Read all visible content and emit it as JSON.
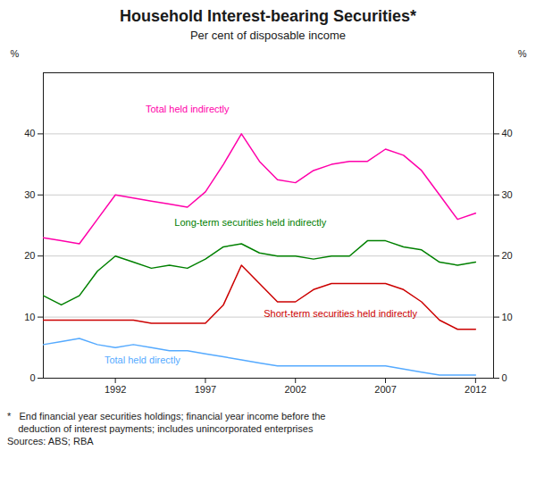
{
  "chart_data": {
    "type": "line",
    "title": "Household Interest-bearing Securities*",
    "subtitle": "Per cent of disposable income",
    "ylabel": "%",
    "y2label": "%",
    "footnotes": [
      "*   End financial year securities holdings; financial year income before the",
      "    deduction of interest payments; includes unincorporated enterprises",
      "Sources: ABS; RBA"
    ],
    "x": [
      1988,
      1989,
      1990,
      1991,
      1992,
      1993,
      1994,
      1995,
      1996,
      1997,
      1998,
      1999,
      2000,
      2001,
      2002,
      2003,
      2004,
      2005,
      2006,
      2007,
      2008,
      2009,
      2010,
      2011,
      2012
    ],
    "xlim": [
      1988,
      2013
    ],
    "xticks": [
      1992,
      1997,
      2002,
      2007,
      2012
    ],
    "ylim": [
      0,
      50
    ],
    "yticks": [
      0,
      10,
      20,
      30,
      40
    ],
    "y2lim": [
      0,
      50
    ],
    "y2ticks": [
      0,
      10,
      20,
      30,
      40
    ],
    "grid": true,
    "series": [
      {
        "name": "Total held indirectly",
        "color": "#FF00AA",
        "label_x": 1996.0,
        "label_y": 44.0,
        "values": [
          23.0,
          22.5,
          22.0,
          26.0,
          30.0,
          29.5,
          29.0,
          28.5,
          28.0,
          30.5,
          35.0,
          40.0,
          35.5,
          32.5,
          32.0,
          34.0,
          35.0,
          35.5,
          35.5,
          37.5,
          36.5,
          34.0,
          30.0,
          26.0,
          27.0
        ]
      },
      {
        "name": "Long-term securities held indirectly",
        "color": "#008000",
        "label_x": 1999.5,
        "label_y": 25.5,
        "values": [
          13.5,
          12.0,
          13.5,
          17.5,
          20.0,
          19.0,
          18.0,
          18.5,
          18.0,
          19.5,
          21.5,
          22.0,
          20.5,
          20.0,
          20.0,
          19.5,
          20.0,
          20.0,
          22.5,
          22.5,
          21.5,
          21.0,
          19.0,
          18.5,
          19.0
        ]
      },
      {
        "name": "Short-term securities held indirectly",
        "color": "#CC0000",
        "label_x": 2004.5,
        "label_y": 10.5,
        "values": [
          9.5,
          9.5,
          9.5,
          9.5,
          9.5,
          9.5,
          9.0,
          9.0,
          9.0,
          9.0,
          12.0,
          18.5,
          15.5,
          12.5,
          12.5,
          14.5,
          15.5,
          15.5,
          15.5,
          15.5,
          14.5,
          12.5,
          9.5,
          8.0,
          8.0
        ]
      },
      {
        "name": "Total held directly",
        "color": "#55AAFF",
        "label_x": 1993.5,
        "label_y": 3.0,
        "values": [
          5.5,
          6.0,
          6.5,
          5.5,
          5.0,
          5.5,
          5.0,
          4.5,
          4.5,
          4.0,
          3.5,
          3.0,
          2.5,
          2.0,
          2.0,
          2.0,
          2.0,
          2.0,
          2.0,
          2.0,
          1.5,
          1.0,
          0.5,
          0.5,
          0.5
        ]
      }
    ]
  }
}
